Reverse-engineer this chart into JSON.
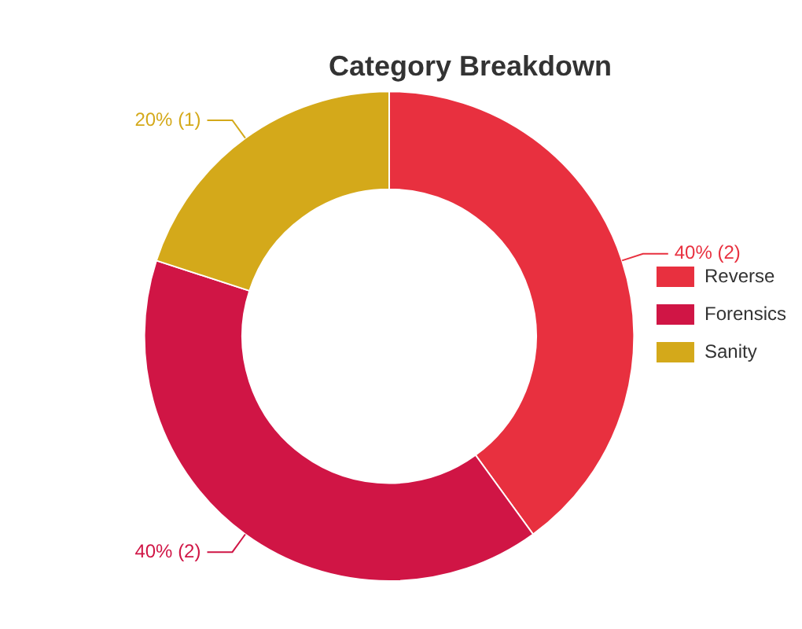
{
  "chart_data": {
    "type": "donut",
    "title": "Category Breakdown",
    "categories": [
      "Reverse",
      "Forensics",
      "Sanity"
    ],
    "values": [
      2,
      2,
      1
    ],
    "value_labels": [
      "40% (2)",
      "40% (2)",
      "20% (1)"
    ],
    "colors": [
      "#e8303f",
      "#d01545",
      "#d4a91a"
    ],
    "legend": "right"
  }
}
